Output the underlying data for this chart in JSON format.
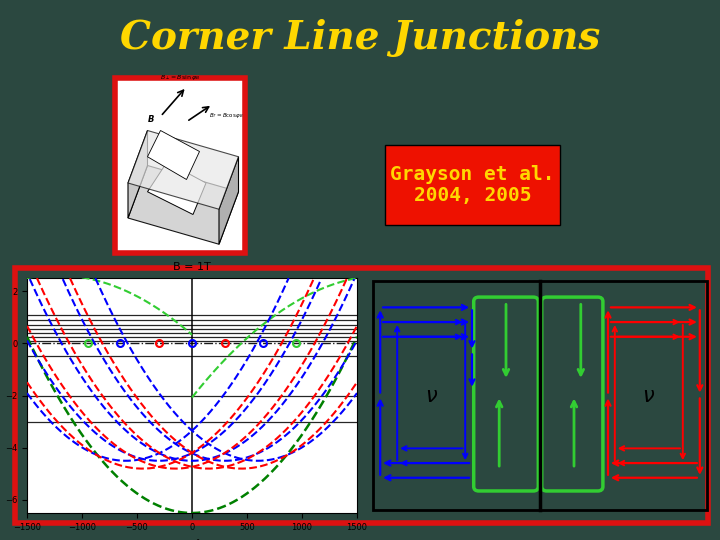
{
  "background_color": "#2b4840",
  "title": "Corner Line Junctions",
  "title_color": "#ffd700",
  "title_fontsize": 28,
  "citation_text": "Grayson et al.\n2004, 2005",
  "citation_color": "#ffd700",
  "citation_bg": "#ee1100",
  "citation_fontsize": 14,
  "red_border_color": "#dd1111",
  "border_linewidth": 4,
  "panel_bg": "#2b4840",
  "plot_bg": "white",
  "flow_bg": "white"
}
